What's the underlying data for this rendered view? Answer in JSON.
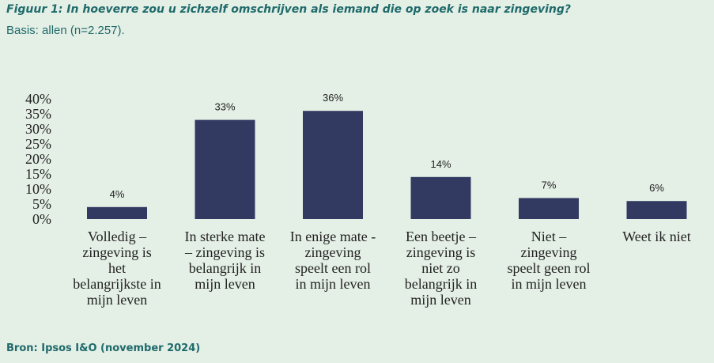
{
  "figure": {
    "title": "Figuur 1: In hoeverre zou u zichzelf omschrijven als iemand die op zoek is naar zingeving?",
    "subtitle": "Basis: allen (n=2.257).",
    "source": "Bron: Ipsos I&O (november 2024)"
  },
  "colors": {
    "background": "#e4efe6",
    "bar": "#333a62",
    "title": "#1e6a6a"
  },
  "chart_data": {
    "type": "bar",
    "title": "",
    "xlabel": "",
    "ylabel": "",
    "ylim": [
      0,
      40
    ],
    "grid": false,
    "yticks": [
      "0%",
      "5%",
      "10%",
      "15%",
      "20%",
      "25%",
      "30%",
      "35%",
      "40%"
    ],
    "categories": [
      [
        "Volledig –",
        "zingeving is",
        "het",
        "belangrijkste in",
        "mijn leven"
      ],
      [
        "In sterke mate",
        "– zingeving is",
        "belangrijk in",
        "mijn leven"
      ],
      [
        "In enige mate -",
        "zingeving",
        "speelt een rol",
        "in mijn leven"
      ],
      [
        "Een beetje –",
        "zingeving is",
        "niet zo",
        "belangrijk in",
        "mijn leven"
      ],
      [
        "Niet –",
        "zingeving",
        "speelt geen rol",
        "in mijn leven"
      ],
      [
        "Weet ik niet"
      ]
    ],
    "values": [
      4,
      33,
      36,
      14,
      7,
      6
    ],
    "data_labels": [
      "4%",
      "33%",
      "36%",
      "14%",
      "7%",
      "6%"
    ]
  }
}
